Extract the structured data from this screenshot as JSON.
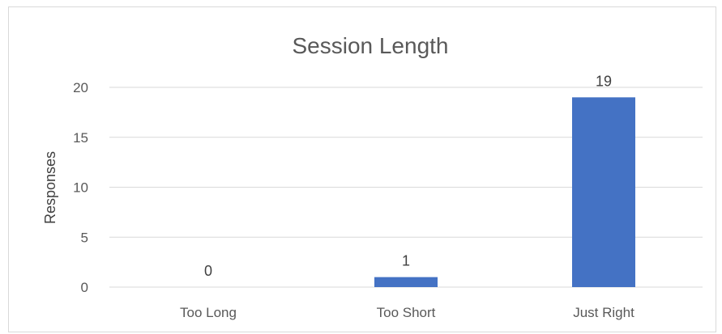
{
  "chart_data": {
    "type": "bar",
    "title": "Session Length",
    "xlabel": "",
    "ylabel": "Responses",
    "categories": [
      "Too Long",
      "Too Short",
      "Just Right"
    ],
    "values": [
      0,
      1,
      19
    ],
    "data_labels": [
      "0",
      "1",
      "19"
    ],
    "ylim": [
      0,
      20
    ],
    "yticks": [
      0,
      5,
      10,
      15,
      20
    ],
    "grid": true,
    "legend": "none",
    "bar_color": "#4472C4",
    "grid_color": "#d9d9d9"
  }
}
